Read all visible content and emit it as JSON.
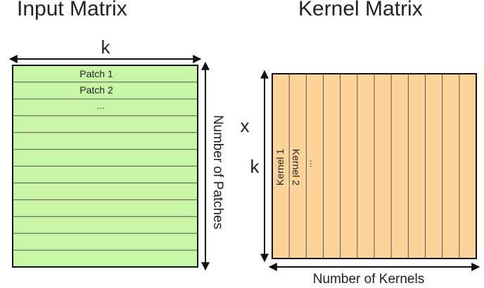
{
  "titles": {
    "input_matrix": "Input Matrix",
    "kernel_matrix": "Kernel Matrix"
  },
  "input": {
    "width_label": "k",
    "height_label": "Number of Patches",
    "rows": [
      "Patch 1",
      "Patch 2",
      "..."
    ],
    "row_count": 12
  },
  "kernel": {
    "height_label_top": "x",
    "height_label_bottom": "k",
    "width_label": "Number of Kernels",
    "columns": [
      "Kernel 1",
      "Kernel 2",
      "..."
    ],
    "column_count": 12
  },
  "colors": {
    "input_fill": "#c9f5a6",
    "kernel_fill": "#fcd49a",
    "line": "#111111",
    "grid": "#555555"
  }
}
